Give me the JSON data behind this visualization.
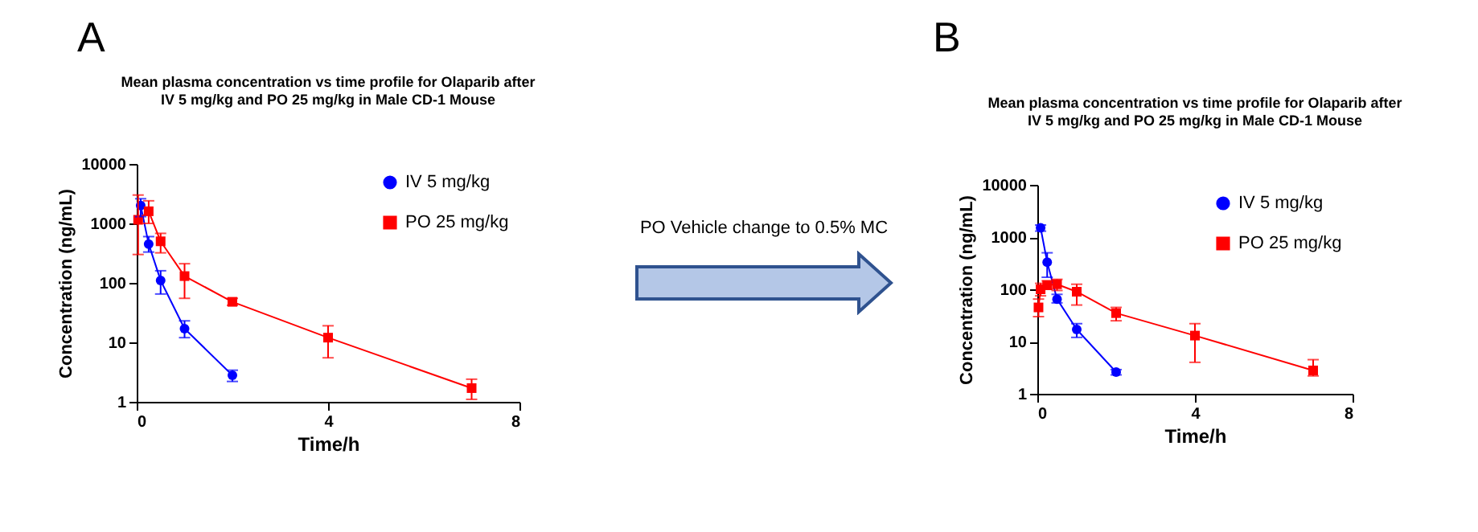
{
  "chart_data": [
    {
      "type": "line",
      "title": "Mean plasma concentration vs time profile for Olaparib after IV 5 mg/kg and PO 25 mg/kg in Male CD-1 Mouse",
      "xlabel": "Time/h",
      "ylabel": "Concentration (ng/mL)",
      "annotations": [
        "A"
      ],
      "log": "y",
      "xlim": [
        0,
        8
      ],
      "xticks": [
        0,
        4,
        8
      ],
      "ylim": [
        1,
        10000
      ],
      "yticks": [
        1,
        10,
        100,
        1000,
        10000
      ],
      "legend": "top right",
      "grid": false,
      "series": [
        {
          "name": "IV 5 mg/kg",
          "color": "#0000ff",
          "marker": "circle",
          "x": [
            0.083,
            0.25,
            0.5,
            1,
            2
          ],
          "values": [
            2000,
            450,
            110,
            17,
            2.8
          ],
          "errors": [
            [
              1300,
              2600
            ],
            [
              330,
              600
            ],
            [
              65,
              160
            ],
            [
              12,
              23
            ],
            [
              2.2,
              3.4
            ]
          ]
        },
        {
          "name": "PO 25 mg/kg",
          "color": "#ff0000",
          "marker": "square",
          "x": [
            0.03,
            0.25,
            0.5,
            1,
            2,
            4,
            7
          ],
          "values": [
            1150,
            1600,
            500,
            130,
            48,
            12,
            1.7
          ],
          "errors": [
            [
              300,
              3000
            ],
            [
              1000,
              2400
            ],
            [
              320,
              680
            ],
            [
              55,
              210
            ],
            [
              42,
              55
            ],
            [
              5.5,
              19
            ],
            [
              1.1,
              2.4
            ]
          ]
        }
      ]
    },
    {
      "type": "other",
      "annotations": [
        "PO Vehicle change to 0.5% MC"
      ]
    },
    {
      "type": "line",
      "title": "Mean plasma concentration vs time profile for Olaparib after IV 5 mg/kg and PO 25 mg/kg in Male CD-1 Mouse",
      "xlabel": "Time/h",
      "ylabel": "Concentration (ng/mL)",
      "annotations": [
        "B"
      ],
      "log": "y",
      "xlim": [
        0,
        8
      ],
      "xticks": [
        0,
        4,
        8
      ],
      "ylim": [
        1,
        10000
      ],
      "yticks": [
        1,
        10,
        100,
        1000,
        10000
      ],
      "legend": "top right",
      "grid": false,
      "series": [
        {
          "name": "IV 5 mg/kg",
          "color": "#0000ff",
          "marker": "circle",
          "x": [
            0.083,
            0.25,
            0.5,
            1,
            2
          ],
          "values": [
            1500,
            330,
            65,
            17,
            2.6
          ],
          "errors": [
            [
              1300,
              1700
            ],
            [
              170,
              500
            ],
            [
              55,
              80
            ],
            [
              12,
              22
            ],
            [
              2.3,
              2.9
            ]
          ]
        },
        {
          "name": "PO 25 mg/kg",
          "color": "#ff0000",
          "marker": "square",
          "x": [
            0.03,
            0.083,
            0.25,
            0.5,
            1,
            2,
            4,
            7
          ],
          "values": [
            45,
            100,
            120,
            125,
            90,
            35,
            13,
            2.8
          ],
          "errors": [
            [
              30,
              65
            ],
            [
              75,
              130
            ],
            [
              100,
              145
            ],
            [
              95,
              155
            ],
            [
              50,
              125
            ],
            [
              25,
              45
            ],
            [
              4,
              22
            ],
            [
              2.2,
              4.5
            ]
          ]
        }
      ]
    }
  ]
}
